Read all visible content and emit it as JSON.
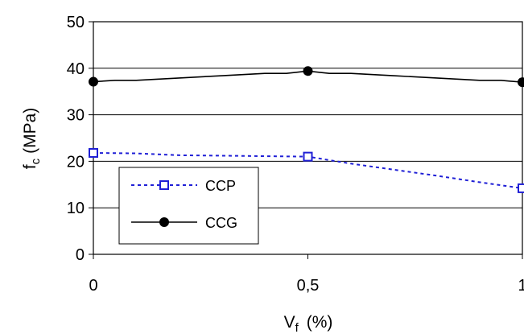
{
  "chart_data": {
    "type": "line",
    "xlabel": "V",
    "xlabel_sub": "f",
    "xlabel_unit": "(%)",
    "ylabel": "f",
    "ylabel_sub": "c",
    "ylabel_unit": "(MPa)",
    "xlim": [
      0,
      1
    ],
    "ylim": [
      0,
      50
    ],
    "x_ticks": [
      0,
      0.5,
      1
    ],
    "x_tick_labels": [
      "0",
      "0,5",
      "1"
    ],
    "y_ticks": [
      0,
      10,
      20,
      30,
      40,
      50
    ],
    "y_tick_labels": [
      "0",
      "10",
      "20",
      "30",
      "40",
      "50"
    ],
    "grid": "horizontal",
    "legend_position": "bottom-left",
    "series": [
      {
        "name": "CCP",
        "color": "#1f1fd6",
        "line_style": "dotted",
        "marker": "open-square",
        "points": [
          {
            "x": 0,
            "y": 21.8
          },
          {
            "x": 0.5,
            "y": 21.0
          },
          {
            "x": 1,
            "y": 14.2
          }
        ],
        "curve": [
          [
            0,
            21.8
          ],
          [
            0.1,
            21.7
          ],
          [
            0.2,
            21.3
          ],
          [
            0.3,
            21.2
          ],
          [
            0.4,
            21.1
          ],
          [
            0.5,
            21.0
          ],
          [
            0.6,
            19.5
          ],
          [
            0.7,
            18.2
          ],
          [
            0.8,
            16.9
          ],
          [
            0.9,
            15.5
          ],
          [
            1,
            14.2
          ]
        ]
      },
      {
        "name": "CCG",
        "color": "#000000",
        "line_style": "solid",
        "marker": "filled-circle",
        "points": [
          {
            "x": 0,
            "y": 37.1
          },
          {
            "x": 0.5,
            "y": 39.4
          },
          {
            "x": 1,
            "y": 37.0
          }
        ],
        "curve": [
          [
            0,
            37.1
          ],
          [
            0.05,
            37.4
          ],
          [
            0.1,
            37.4
          ],
          [
            0.2,
            37.9
          ],
          [
            0.3,
            38.4
          ],
          [
            0.4,
            38.9
          ],
          [
            0.45,
            38.9
          ],
          [
            0.5,
            39.4
          ],
          [
            0.55,
            38.9
          ],
          [
            0.6,
            38.9
          ],
          [
            0.7,
            38.4
          ],
          [
            0.8,
            37.9
          ],
          [
            0.9,
            37.4
          ],
          [
            0.95,
            37.4
          ],
          [
            1,
            37.0
          ]
        ]
      }
    ]
  }
}
